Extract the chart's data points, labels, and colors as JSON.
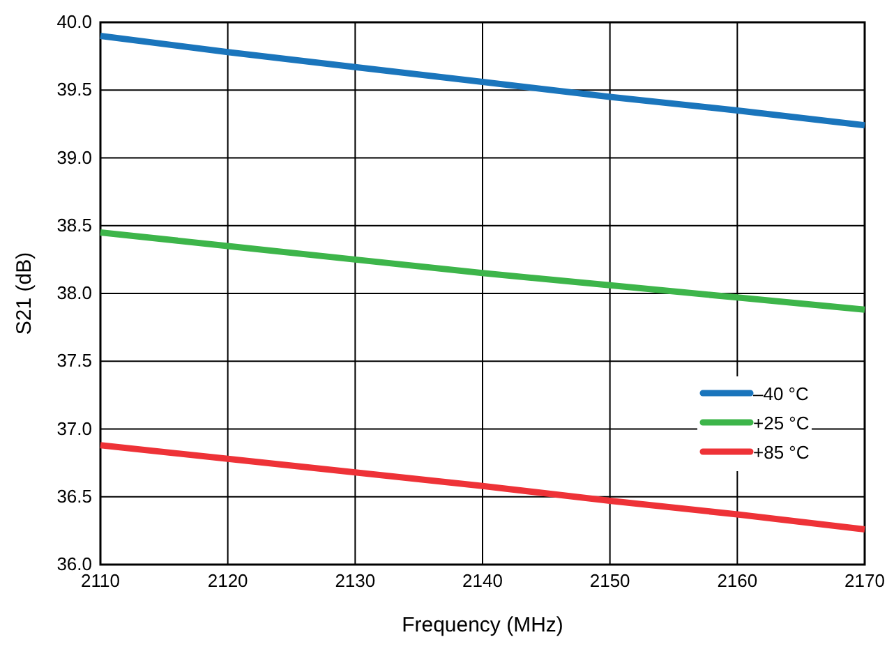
{
  "chart_data": {
    "type": "line",
    "xlabel": "Frequency (MHz)",
    "ylabel": "S21 (dB)",
    "x": [
      2110,
      2120,
      2130,
      2140,
      2150,
      2160,
      2170
    ],
    "series": [
      {
        "name": "–40 °C",
        "color": "#1a75bc",
        "values": [
          39.9,
          39.78,
          39.67,
          39.56,
          39.45,
          39.35,
          39.24
        ]
      },
      {
        "name": "+25 °C",
        "color": "#3db54a",
        "values": [
          38.45,
          38.35,
          38.25,
          38.15,
          38.06,
          37.97,
          37.88
        ]
      },
      {
        "name": "+85 °C",
        "color": "#ee3237",
        "values": [
          36.88,
          36.78,
          36.68,
          36.58,
          36.47,
          36.37,
          36.26
        ]
      }
    ],
    "xlim": [
      2110,
      2170
    ],
    "xticks": [
      2110,
      2120,
      2130,
      2140,
      2150,
      2160,
      2170
    ],
    "ylim": [
      36.0,
      40.0
    ],
    "yticks": [
      {
        "value": 36,
        "label": "36.0"
      },
      {
        "value": 36.5,
        "label": "36.5"
      },
      {
        "value": 37,
        "label": "37.0"
      },
      {
        "value": 37.5,
        "label": "37.5"
      },
      {
        "value": 38,
        "label": "38.0"
      },
      {
        "value": 38.5,
        "label": "38.5"
      },
      {
        "value": 39,
        "label": "39.0"
      },
      {
        "value": 39.5,
        "label": "39.5"
      },
      {
        "value": 40,
        "label": "40.0"
      }
    ],
    "grid": true,
    "legend": "right",
    "marker": "none",
    "line_style": "solid"
  }
}
